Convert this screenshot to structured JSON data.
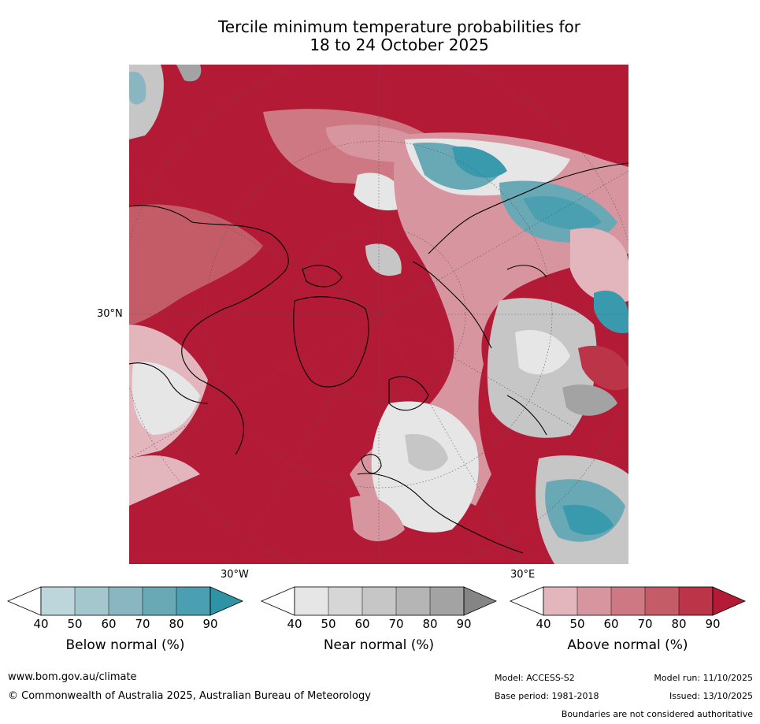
{
  "title": {
    "line1": "Tercile minimum temperature probabilities for",
    "line2": "18 to 24 October 2025"
  },
  "map": {
    "lat_label": "30°N",
    "lon_labels": [
      "30°W",
      "30°E"
    ]
  },
  "legend": {
    "colorbars": [
      {
        "label": "Below normal (%)",
        "ticks": [
          "40",
          "50",
          "60",
          "70",
          "80",
          "90"
        ],
        "colors": [
          "#ffffff",
          "#bcd6dc",
          "#a4c7ce",
          "#89b6c1",
          "#69a9b5",
          "#4aa0b0",
          "#2f93a6"
        ]
      },
      {
        "label": "Near normal (%)",
        "ticks": [
          "40",
          "50",
          "60",
          "70",
          "80",
          "90"
        ],
        "colors": [
          "#ffffff",
          "#e6e6e6",
          "#d6d6d6",
          "#c6c6c6",
          "#b5b5b5",
          "#a3a3a3",
          "#858585"
        ]
      },
      {
        "label": "Above normal (%)",
        "ticks": [
          "40",
          "50",
          "60",
          "70",
          "80",
          "90"
        ],
        "colors": [
          "#ffffff",
          "#e3b6bd",
          "#d7969f",
          "#cd7882",
          "#c45c68",
          "#bc3448",
          "#b31a36"
        ]
      }
    ]
  },
  "colors": {
    "above_90": "#b31a36",
    "above_80": "#bc3448",
    "above_70": "#c45c68",
    "above_60": "#cd7882",
    "above_50": "#d7969f",
    "above_40": "#e3b6bd",
    "near_low": "#e6e6e6",
    "near_mid": "#c6c6c6",
    "near_high": "#a3a3a3",
    "below_mid": "#69a9b5",
    "below_high": "#3a9aad"
  },
  "footer": {
    "url": "www.bom.gov.au/climate",
    "copyright": "© Commonwealth of Australia 2025, Australian Bureau of Meteorology",
    "model": "Model: ACCESS-S2",
    "base_period": "Base period: 1981-2018",
    "model_run": "Model run: 11/10/2025",
    "issued": "Issued: 13/10/2025",
    "disclaimer": "Boundaries are not considered authoritative"
  }
}
